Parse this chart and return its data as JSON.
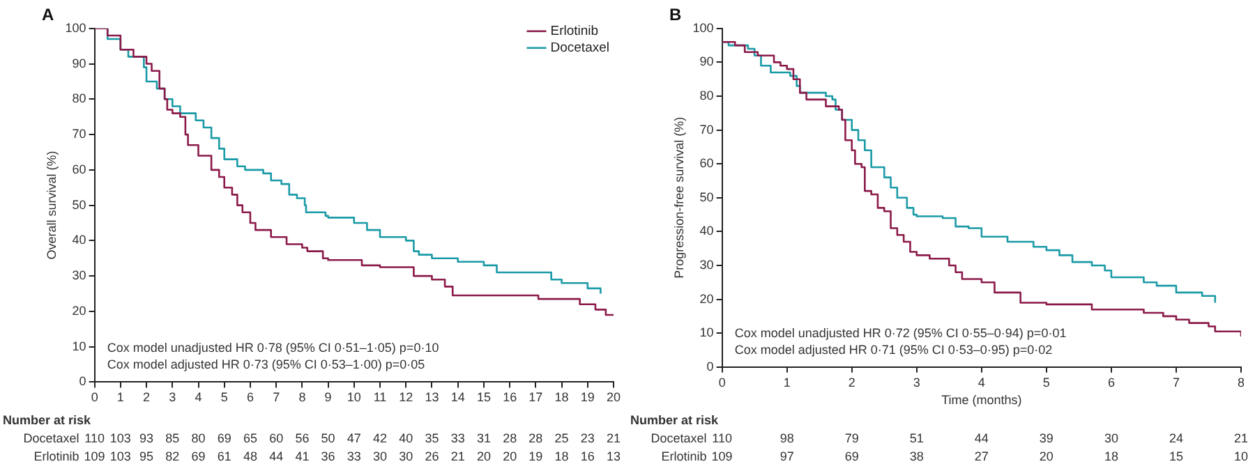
{
  "chart_data": [
    {
      "type": "step",
      "title": "A",
      "ylabel": "Overall survival (%)",
      "xlim": [
        0,
        20
      ],
      "xticks": [
        0,
        1,
        2,
        3,
        4,
        5,
        6,
        7,
        8,
        9,
        10,
        11,
        12,
        13,
        14,
        15,
        16,
        17,
        18,
        19,
        20
      ],
      "ylim": [
        0,
        100
      ],
      "yticks": [
        0,
        10,
        20,
        30,
        40,
        50,
        60,
        70,
        80,
        90,
        100
      ],
      "grid": false,
      "legend": "top right",
      "marker": "none",
      "series": [
        {
          "name": "Erlotinib",
          "color": "#8b1a4a",
          "x": [
            0,
            0.5,
            1,
            1.5,
            2,
            2.2,
            2.5,
            2.7,
            2.8,
            3,
            3.3,
            3.5,
            3.6,
            4,
            4.5,
            4.8,
            5,
            5.3,
            5.5,
            5.7,
            6,
            6.2,
            6.7,
            6.8,
            7.3,
            7.4,
            8,
            8.2,
            8.8,
            9,
            10,
            10.3,
            11,
            12,
            12.3,
            13,
            13.5,
            13.8,
            14,
            17,
            17.1,
            18.6,
            18.7,
            19.3,
            19.7,
            20
          ],
          "values": [
            100,
            98,
            94,
            92,
            90,
            88,
            83,
            80,
            77,
            76,
            75,
            70,
            67,
            64,
            60,
            58,
            55,
            53,
            50,
            48,
            45,
            43,
            43,
            41,
            41,
            39,
            38,
            37,
            35,
            34.5,
            34.5,
            33,
            32.5,
            32.5,
            30,
            29,
            27,
            24.5,
            24.5,
            24.5,
            23.5,
            23.5,
            22,
            20.5,
            19,
            19
          ]
        },
        {
          "name": "Docetaxel",
          "color": "#1a9aa6",
          "x": [
            0,
            0.5,
            1,
            1.3,
            1.8,
            1.9,
            2,
            2.4,
            2.7,
            3,
            3.3,
            3.9,
            4.2,
            4.5,
            4.8,
            5,
            5.5,
            5.8,
            6.5,
            6.8,
            7.2,
            7.5,
            7.8,
            8.1,
            8.15,
            8.9,
            9,
            10,
            10.5,
            11,
            12,
            12.3,
            12.5,
            13,
            14,
            15,
            15.5,
            17.5,
            17.6,
            18,
            19,
            19.5,
            19.5
          ],
          "values": [
            100,
            97,
            94,
            92,
            92,
            89,
            85,
            83,
            80,
            78,
            76,
            74,
            72,
            69,
            66,
            63,
            61,
            60,
            59,
            57,
            56,
            53,
            52,
            50,
            48,
            47,
            46.5,
            45,
            43,
            41,
            40,
            37,
            36,
            35,
            34,
            33,
            31,
            31,
            29,
            28,
            26.5,
            26.5,
            25
          ]
        }
      ],
      "annotations": [
        "Cox model unadjusted HR 0·78 (95% CI 0·51–1·05) p=0·10",
        "Cox model adjusted HR 0·73 (95% CI 0·53–1·00) p=0·05",
        "Number at risk",
        "Docetaxel 110 103 93 85 80 69 65 60 56 50 47 42 40 35 33 31 28 28 25 23 21",
        "Erlotinib 109 103 95 82 69 61 48 44 41 36 33 30 30 26 21 20 20 19 18 16 13"
      ]
    },
    {
      "type": "step",
      "title": "B",
      "ylabel": "Progression-free survival (%)",
      "xlabel": "Time (months)",
      "xlim": [
        0,
        8
      ],
      "xticks": [
        0,
        1,
        2,
        3,
        4,
        5,
        6,
        7,
        8
      ],
      "ylim": [
        0,
        100
      ],
      "yticks": [
        0,
        10,
        20,
        30,
        40,
        50,
        60,
        70,
        80,
        90,
        100
      ],
      "grid": false,
      "marker": "none",
      "series": [
        {
          "color": "#8b1a4a",
          "x": [
            0,
            0.2,
            0.35,
            0.55,
            0.8,
            0.9,
            1,
            1.1,
            1.2,
            1.3,
            1.5,
            1.6,
            1.8,
            1.85,
            1.9,
            2,
            2.05,
            2.15,
            2.2,
            2.3,
            2.4,
            2.5,
            2.6,
            2.7,
            2.8,
            2.9,
            3,
            3.2,
            3.5,
            3.6,
            3.7,
            4,
            4.2,
            4.6,
            5,
            5.7,
            6.5,
            6.8,
            7,
            7.2,
            7.5,
            7.6,
            8,
            8
          ],
          "values": [
            96,
            95,
            93,
            92,
            90,
            89,
            88,
            85,
            81,
            79,
            79,
            77,
            76,
            73,
            67,
            64,
            60,
            59,
            52,
            51,
            47,
            46,
            41,
            39,
            37,
            34,
            33,
            32,
            30,
            28,
            26,
            25,
            22,
            19,
            18.5,
            17,
            16,
            15,
            14,
            13,
            12,
            10.5,
            10,
            9
          ]
        },
        {
          "color": "#1a9aa6",
          "x": [
            0,
            0.1,
            0.4,
            0.5,
            0.6,
            0.75,
            0.9,
            1.05,
            1.15,
            1.2,
            1.6,
            1.7,
            1.75,
            1.85,
            2,
            2.1,
            2.2,
            2.3,
            2.4,
            2.5,
            2.6,
            2.7,
            2.85,
            2.95,
            3,
            3.4,
            3.6,
            3.8,
            4,
            4.4,
            4.8,
            5,
            5.2,
            5.4,
            5.7,
            5.9,
            6,
            6.4,
            6.5,
            6.7,
            7,
            7.2,
            7.4,
            7.6,
            7.6
          ],
          "values": [
            96,
            95,
            94,
            92,
            89,
            87,
            87,
            86,
            83,
            81,
            80,
            79,
            76,
            73,
            70,
            67,
            64,
            59,
            59,
            56,
            53,
            50,
            47,
            45,
            44.5,
            44,
            41.5,
            41,
            38.5,
            37,
            35.5,
            34.5,
            33,
            31,
            30,
            28.5,
            26.5,
            26.5,
            25,
            24,
            22,
            22,
            21,
            20,
            19
          ]
        }
      ],
      "annotations": [
        "Cox model unadjusted HR 0·72 (95% CI 0·55–0·94) p=0·01",
        "Cox model adjusted HR 0·71 (95% CI 0·53–0·95) p=0·02",
        "Number at risk",
        "Docetaxel 110 98 79 51 44 39 30 24 21",
        "Erlotinib 109 97 69 38 27 20 18 15 10"
      ]
    }
  ]
}
